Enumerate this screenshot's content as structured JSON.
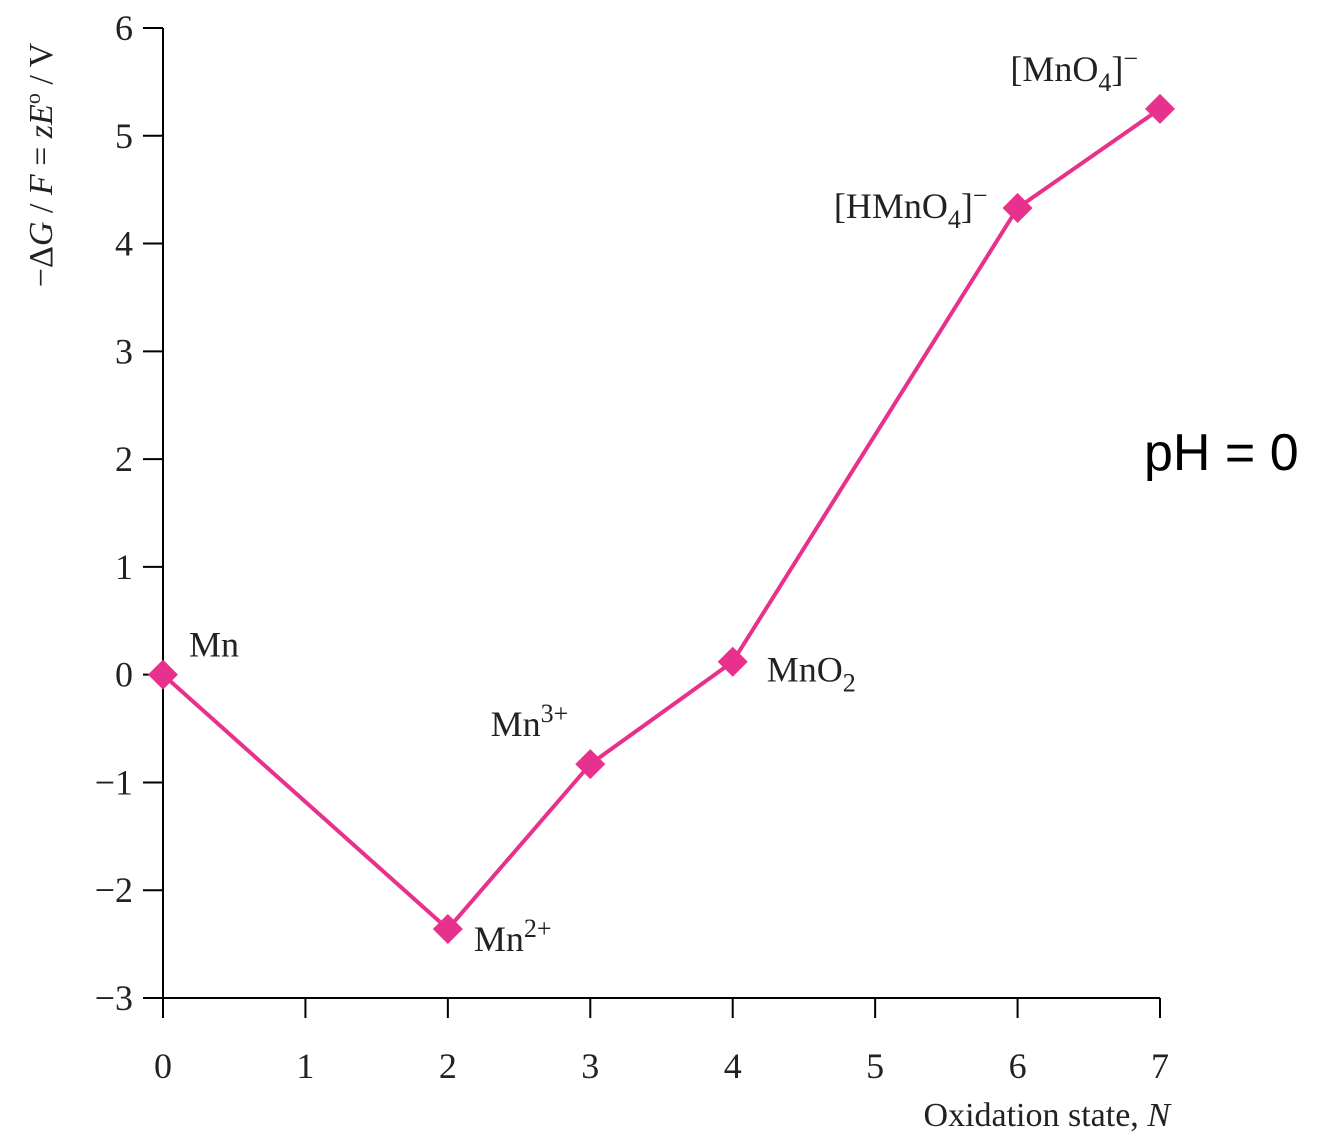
{
  "chart_data": {
    "type": "line",
    "title": "",
    "xlabel": "Oxidation state, ",
    "xlabel_var": "N",
    "ylabel_parts": {
      "lead": "−Δ",
      "G": "G",
      "slash1": " / ",
      "F": "F",
      "eq": " = ",
      "z": "z",
      "E": "E",
      "o": "o",
      "unit": " / V"
    },
    "xlim": [
      0,
      7
    ],
    "ylim": [
      -3,
      6
    ],
    "x_ticks": [
      0,
      1,
      2,
      3,
      4,
      5,
      6,
      7
    ],
    "x_tick_labels": [
      "0",
      "1",
      "2",
      "3",
      "4",
      "5",
      "6",
      "7"
    ],
    "y_ticks": [
      -3,
      -2,
      -1,
      0,
      1,
      2,
      3,
      4,
      5,
      6
    ],
    "y_tick_labels": [
      "−3",
      "−2",
      "−1",
      "0",
      "1",
      "2",
      "3",
      "4",
      "5",
      "6"
    ],
    "grid": false,
    "series": [
      {
        "color": "#e8318c",
        "marker": "diamond",
        "points": [
          {
            "x": 0,
            "y": 0.0,
            "label": {
              "base": "Mn",
              "sub": "",
              "sup": "",
              "tail": "",
              "position": "upper-right"
            }
          },
          {
            "x": 2,
            "y": -2.36,
            "label": {
              "base": "Mn",
              "sub": "",
              "sup": "2+",
              "tail": "",
              "position": "lower-right"
            }
          },
          {
            "x": 3,
            "y": -0.83,
            "label": {
              "base": "Mn",
              "sub": "",
              "sup": "3+",
              "tail": "",
              "position": "upper-left"
            }
          },
          {
            "x": 4,
            "y": 0.12,
            "label": {
              "base": "MnO",
              "sub": "2",
              "sup": "",
              "tail": "",
              "position": "right"
            }
          },
          {
            "x": 6,
            "y": 4.33,
            "label": {
              "base": "[HMnO",
              "sub": "4",
              "sup": "−",
              "tail": "]",
              "position": "left"
            }
          },
          {
            "x": 7,
            "y": 5.25,
            "label": {
              "base": "[MnO",
              "sub": "4",
              "sup": "−",
              "tail": "]",
              "position": "upper-left"
            }
          }
        ]
      }
    ],
    "annotation": "pH = 0"
  }
}
